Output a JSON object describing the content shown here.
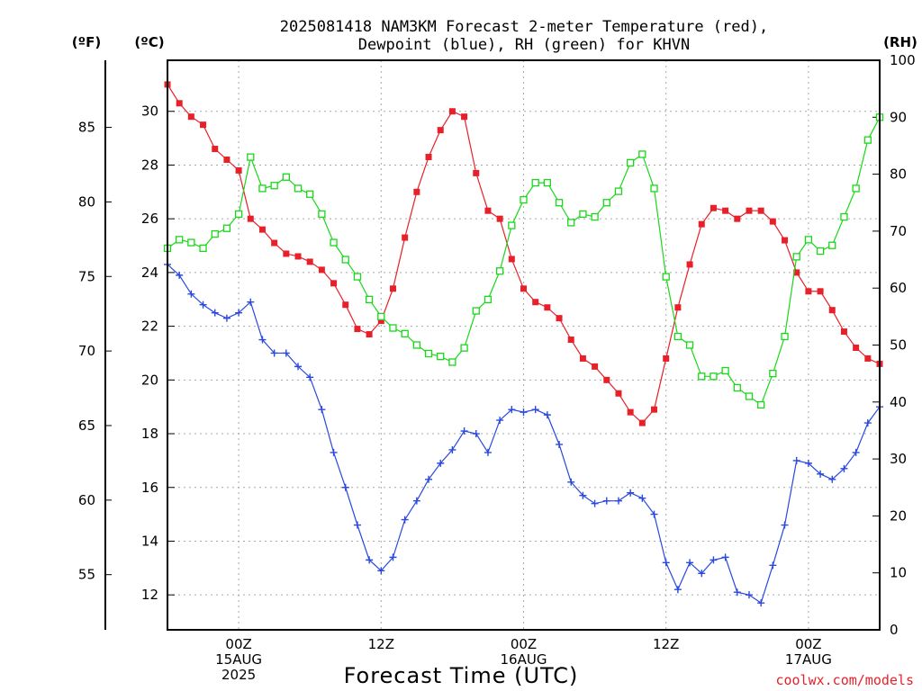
{
  "chart_data": {
    "type": "line",
    "title_line1": "2025081418 NAM3KM Forecast 2-meter Temperature (red),",
    "title_line2": "Dewpoint (blue), RH (green) for KHVN",
    "xlabel": "Forecast Time (UTC)",
    "credit": "coolwx.com/models",
    "y_left_f_label": "(ºF)",
    "y_left_c_label": "(ºC)",
    "y_right_label": "(RH)",
    "x_range_hours": [
      0,
      60
    ],
    "y_c_range": [
      10.7,
      31.9
    ],
    "y_rh_range": [
      0,
      100
    ],
    "y_f_range": [
      51.3,
      89.5
    ],
    "grid": true,
    "x_ticks": [
      {
        "hour": 6,
        "lines": [
          "00Z",
          "15AUG",
          "2025"
        ]
      },
      {
        "hour": 18,
        "lines": [
          "12Z"
        ]
      },
      {
        "hour": 30,
        "lines": [
          "00Z",
          "16AUG"
        ]
      },
      {
        "hour": 42,
        "lines": [
          "12Z"
        ]
      },
      {
        "hour": 54,
        "lines": [
          "00Z",
          "17AUG"
        ]
      }
    ],
    "y_c_ticks": [
      12,
      14,
      16,
      18,
      20,
      22,
      24,
      26,
      28,
      30
    ],
    "y_f_ticks": [
      55,
      60,
      65,
      70,
      75,
      80,
      85
    ],
    "y_rh_ticks": [
      0,
      10,
      20,
      30,
      40,
      50,
      60,
      70,
      80,
      90,
      100
    ],
    "series": [
      {
        "name": "Temperature",
        "color": "#e8202a",
        "marker": "filled-square",
        "units": "C",
        "values": [
          31.0,
          30.3,
          29.8,
          29.5,
          28.6,
          28.2,
          27.8,
          26.0,
          25.6,
          25.1,
          24.7,
          24.6,
          24.4,
          24.1,
          23.6,
          22.8,
          21.9,
          21.7,
          22.2,
          23.4,
          25.3,
          27.0,
          28.3,
          29.3,
          30.0,
          29.8,
          27.7,
          26.3,
          26.0,
          24.5,
          23.4,
          22.9,
          22.7,
          22.3,
          21.5,
          20.8,
          20.5,
          20.0,
          19.5,
          18.8,
          18.4,
          18.9,
          20.8,
          22.7,
          24.3,
          25.8,
          26.4,
          26.3,
          26.0,
          26.3,
          26.3,
          25.9,
          25.2,
          24.0,
          23.3,
          23.3,
          22.6,
          21.8,
          21.2,
          20.8,
          20.6
        ]
      },
      {
        "name": "Dewpoint",
        "color": "#2848e0",
        "marker": "plus",
        "units": "C",
        "values": [
          24.3,
          23.9,
          23.2,
          22.8,
          22.5,
          22.3,
          22.5,
          22.9,
          21.5,
          21.0,
          21.0,
          20.5,
          20.1,
          18.9,
          17.3,
          16.0,
          14.6,
          13.3,
          12.9,
          13.4,
          14.8,
          15.5,
          16.3,
          16.9,
          17.4,
          18.1,
          18.0,
          17.3,
          18.5,
          18.9,
          18.8,
          18.9,
          18.7,
          17.6,
          16.2,
          15.7,
          15.4,
          15.5,
          15.5,
          15.8,
          15.6,
          15.0,
          13.2,
          12.2,
          13.2,
          12.8,
          13.3,
          13.4,
          12.1,
          12.0,
          11.7,
          13.1,
          14.6,
          17.0,
          16.9,
          16.5,
          16.3,
          16.7,
          17.3,
          18.4,
          19.0
        ]
      },
      {
        "name": "RH",
        "color": "#18d818",
        "marker": "open-square",
        "units": "%",
        "values": [
          67,
          68.5,
          68,
          67,
          69.5,
          70.5,
          73,
          83,
          77.5,
          78,
          79.5,
          77.5,
          76.5,
          73,
          68,
          65,
          62,
          58,
          55,
          53,
          52,
          50,
          48.5,
          48,
          47,
          49.5,
          56,
          58,
          63,
          71,
          75.5,
          78.5,
          78.5,
          75,
          71.5,
          73,
          72.5,
          75,
          77,
          82,
          83.5,
          77.5,
          62,
          51.5,
          50,
          44.5,
          44.5,
          45.5,
          42.5,
          41,
          39.5,
          45,
          51.5,
          65.5,
          68.5,
          66.5,
          67.5,
          72.5,
          77.5,
          86,
          90
        ]
      }
    ]
  }
}
